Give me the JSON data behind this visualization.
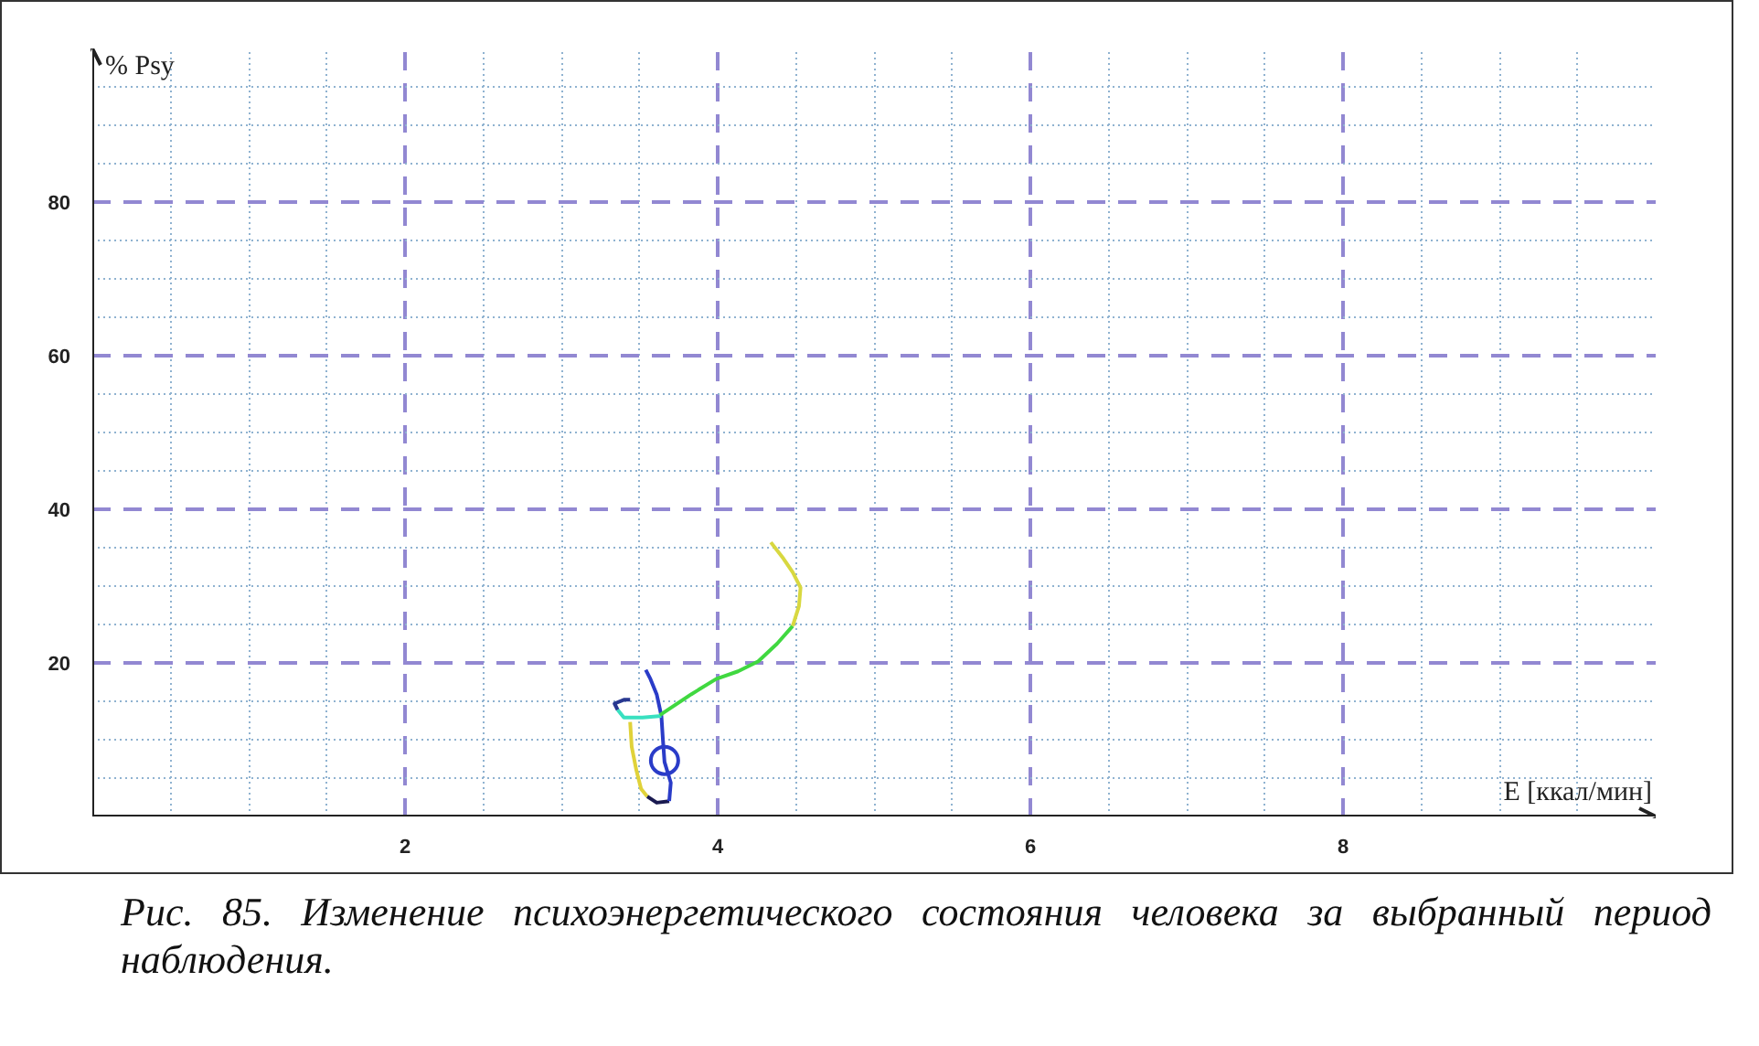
{
  "chart_data": {
    "type": "line",
    "xlabel": "E [ккал/мин]",
    "ylabel": "% Psy",
    "xlim": [
      0,
      10
    ],
    "ylim": [
      0,
      100
    ],
    "xticks": [
      {
        "value": 0.5,
        "label": null
      },
      {
        "value": 1,
        "label": null
      },
      {
        "value": 1.5,
        "label": null
      },
      2,
      {
        "value": 2.5,
        "label": null
      },
      {
        "value": 3,
        "label": null
      },
      {
        "value": 3.5,
        "label": null
      },
      4,
      {
        "value": 4.5,
        "label": null
      },
      {
        "value": 5,
        "label": null
      },
      {
        "value": 5.5,
        "label": null
      },
      6,
      {
        "value": 6.5,
        "label": null
      },
      {
        "value": 7,
        "label": null
      },
      {
        "value": 7.5,
        "label": null
      },
      8,
      {
        "value": 8.5,
        "label": null
      },
      {
        "value": 9,
        "label": null
      },
      {
        "value": 9.5,
        "label": null
      }
    ],
    "yticks": [
      {
        "value": 5,
        "label": null
      },
      {
        "value": 10,
        "label": null
      },
      {
        "value": 15,
        "label": null
      },
      20,
      {
        "value": 25,
        "label": null
      },
      {
        "value": 30,
        "label": null
      },
      {
        "value": 35,
        "label": null
      },
      40,
      {
        "value": 45,
        "label": null
      },
      {
        "value": 50,
        "label": null
      },
      {
        "value": 55,
        "label": null
      },
      60,
      {
        "value": 65,
        "label": null
      },
      {
        "value": 70,
        "label": null
      },
      {
        "value": 75,
        "label": null
      },
      80,
      {
        "value": 85,
        "label": null
      },
      {
        "value": 90,
        "label": null
      },
      {
        "value": 95,
        "label": null
      }
    ],
    "grid": true,
    "line_style": "solid",
    "annotations": [
      "Рис. 85. Изменение психоэнергетического состояния человека за выбранный период наблюдения."
    ],
    "series": [
      {
        "color": "#e0d23a",
        "x": [
          3.44,
          3.45,
          3.48,
          3.51,
          3.55
        ],
        "values": [
          12.3,
          9.1,
          6.0,
          3.6,
          2.6
        ]
      },
      {
        "color": "#1a1a50",
        "x": [
          3.55,
          3.61,
          3.69
        ],
        "values": [
          2.6,
          1.8,
          2.0
        ]
      },
      {
        "color": "#2a3cc8",
        "x": [
          3.69,
          3.7,
          3.66,
          3.65,
          3.64,
          3.61,
          3.57,
          3.54
        ],
        "values": [
          2.0,
          4.4,
          7.1,
          9.9,
          13.1,
          15.9,
          17.9,
          19.1
        ]
      },
      {
        "color": "#38e0c0",
        "x": [
          3.64,
          3.52,
          3.4,
          3.36
        ],
        "values": [
          13.1,
          12.9,
          12.9,
          13.9
        ]
      },
      {
        "color": "#283890",
        "x": [
          3.36,
          3.34,
          3.4,
          3.44
        ],
        "values": [
          13.9,
          14.7,
          15.2,
          15.2
        ]
      },
      {
        "color": "#40d840",
        "x": [
          3.63,
          3.83,
          3.99,
          4.13,
          4.26,
          4.38,
          4.48
        ],
        "values": [
          13.2,
          15.9,
          17.9,
          18.9,
          20.2,
          22.5,
          24.8
        ]
      },
      {
        "color": "#d8d840",
        "x": [
          4.48,
          4.52,
          4.53,
          4.48,
          4.42,
          4.34
        ],
        "values": [
          24.8,
          27.4,
          29.8,
          31.8,
          33.6,
          35.7
        ]
      },
      {
        "type": "scatter",
        "marker": "circle",
        "color": "#2a3cc8",
        "x": [
          3.66
        ],
        "values": [
          7.3
        ]
      }
    ]
  }
}
